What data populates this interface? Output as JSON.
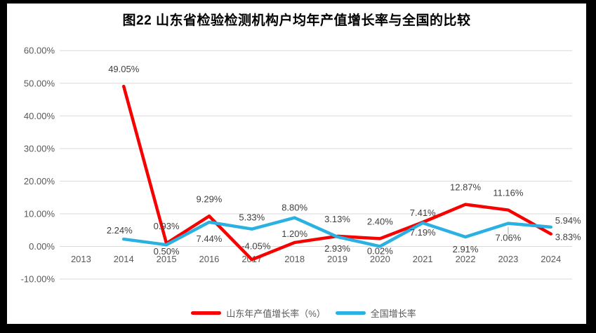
{
  "colors": {
    "shandong_line": "#f80000",
    "national_line": "#2bb0e2",
    "grid": "#d9d9d9",
    "axis_text": "#595959",
    "data_label_text": "#404040",
    "leader_line": "#a6a6a6",
    "frame": "#000000",
    "background": "#ffffff"
  },
  "chart_data": {
    "type": "line",
    "title": "图22 山东省检验检测机构户均年产值增长率与全国的比较",
    "categories": [
      "2013",
      "2014",
      "2015",
      "2016",
      "2017",
      "2018",
      "2019",
      "2020",
      "2021",
      "2022",
      "2023",
      "2024"
    ],
    "y_axis": {
      "min": -10,
      "max": 60,
      "step": 10,
      "tick_values": [
        60,
        50,
        40,
        30,
        20,
        10,
        0,
        -10
      ],
      "tick_labels": [
        "60.00%",
        "50.00%",
        "40.00%",
        "30.00%",
        "20.00%",
        "10.00%",
        "0.00%",
        "-10.00%"
      ]
    },
    "grid": true,
    "legend_position": "bottom",
    "series": [
      {
        "name": "山东年产值增长率（%）",
        "color_key": "shandong_line",
        "values": [
          null,
          49.05,
          0.93,
          9.29,
          -4.05,
          1.2,
          3.13,
          2.4,
          7.41,
          12.87,
          11.16,
          3.83
        ],
        "data_labels": [
          null,
          "49.05%",
          "0.93%",
          "9.29%",
          "-4.05%",
          "1.20%",
          "3.13%",
          "2.40%",
          "7.41%",
          "12.87%",
          "11.16%",
          "3.83%"
        ],
        "label_pos": [
          null,
          [
            0,
            -20
          ],
          [
            0,
            -20
          ],
          [
            0,
            -20
          ],
          [
            6,
            -15
          ],
          [
            0,
            -8
          ],
          [
            0,
            -20
          ],
          [
            0,
            -20
          ],
          [
            0,
            -9
          ],
          [
            0,
            -20
          ],
          [
            0,
            -20
          ],
          [
            6,
            9,
            "start"
          ]
        ]
      },
      {
        "name": "全国增长率",
        "color_key": "national_line",
        "values": [
          null,
          2.24,
          0.5,
          7.44,
          5.33,
          8.8,
          2.93,
          0.02,
          7.19,
          2.91,
          7.06,
          5.94
        ],
        "data_labels": [
          null,
          "2.24%",
          "0.50%",
          "7.44%",
          "5.33%",
          "8.80%",
          "2.93%",
          "0.02%",
          "7.19%",
          "2.91%",
          "7.06%",
          "5.94%"
        ],
        "label_pos": [
          null,
          [
            -6,
            -8
          ],
          [
            0,
            14
          ],
          [
            0,
            28
          ],
          [
            0,
            -12
          ],
          [
            0,
            -10
          ],
          [
            0,
            21
          ],
          [
            0,
            11
          ],
          [
            0,
            18
          ],
          [
            0,
            22
          ],
          [
            0,
            25
          ],
          [
            6,
            -5,
            "start"
          ]
        ],
        "leader": [
          10
        ]
      }
    ]
  }
}
